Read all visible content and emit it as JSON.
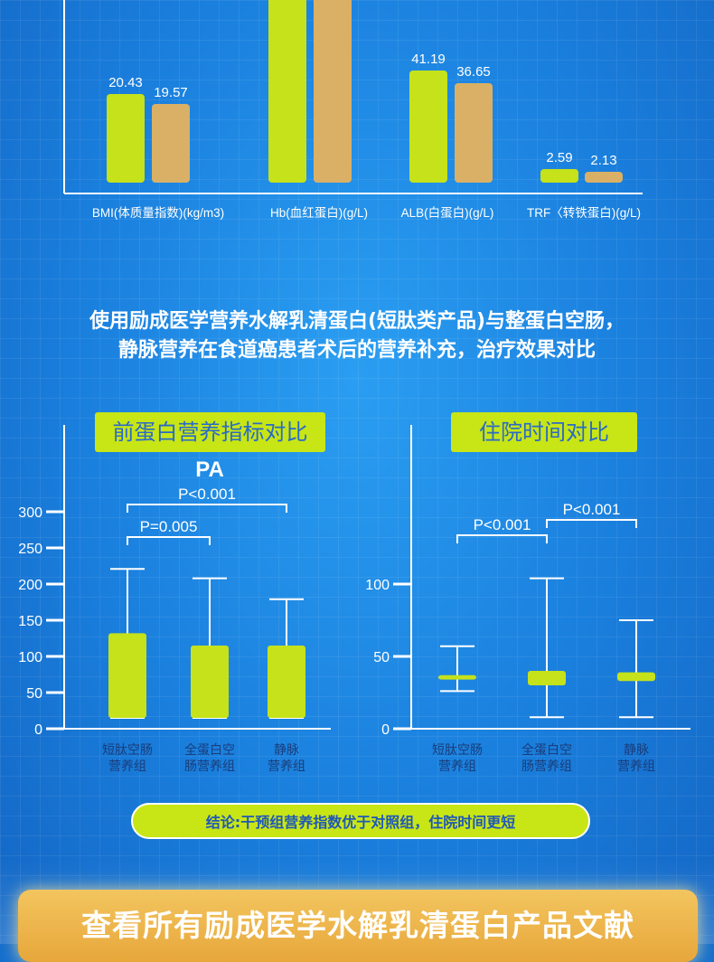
{
  "colors": {
    "lime": "#c5e21a",
    "tan": "#d9b066",
    "white": "#ffffff",
    "label_dark": "#1a3d7a"
  },
  "headline": {
    "line1": "使用励成医学营养水解乳清蛋白(短肽类产品)与整蛋白空肠，",
    "line2": "静脉营养在食道癌患者术后的营养补充，治疗效果对比"
  },
  "panels": {
    "left_title": "前蛋白营养指标对比",
    "right_title": "住院时间对比"
  },
  "conclusion": "结论:干预组营养指数优于对照组，住院时间更短",
  "footer_button": "查看所有励成医学水解乳清蛋白产品文献",
  "chart_data": [
    {
      "type": "bar",
      "categories": [
        "BMI(体质量指数)(kg/m3)",
        "Hb(血红蛋白)(g/L)",
        "ALB(白蛋白)(g/L)",
        "TRF〈转铁蛋白)(g/L)"
      ],
      "series": [
        {
          "values": [
            20.43,
            null,
            41.19,
            2.59
          ],
          "labels": [
            "20.43",
            "",
            "41.19",
            "2.59"
          ]
        },
        {
          "values": [
            19.57,
            null,
            36.65,
            2.13
          ],
          "labels": [
            "19.57",
            "",
            "36.65",
            "2.13"
          ]
        }
      ]
    },
    {
      "type": "box",
      "title": "PA",
      "ylim": [
        0,
        300
      ],
      "yticks": [
        "0",
        "50",
        "100",
        "150",
        "200",
        "250",
        "300"
      ],
      "categories": [
        [
          "短肽空肠",
          "营养组"
        ],
        [
          "全蛋白空",
          "肠营养组"
        ],
        [
          "静脉",
          "营养组"
        ]
      ],
      "boxes": [
        {
          "whisker_low": 15,
          "box_low": 15,
          "box_high": 132,
          "whisker_high": 221
        },
        {
          "whisker_low": 15,
          "box_low": 15,
          "box_high": 115,
          "whisker_high": 208
        },
        {
          "whisker_low": 15,
          "box_low": 15,
          "box_high": 115,
          "whisker_high": 179
        }
      ],
      "annotations": [
        {
          "label": "P<0.001",
          "from": 0,
          "to": 2
        },
        {
          "label": "P=0.005",
          "from": 0,
          "to": 1
        }
      ]
    },
    {
      "type": "box",
      "ylim": [
        0,
        150
      ],
      "yticks": [
        "0",
        "50",
        "100"
      ],
      "categories": [
        [
          "短肽空肠",
          "营养组"
        ],
        [
          "全蛋白空",
          "肠营养组"
        ],
        [
          "静脉",
          "营养组"
        ]
      ],
      "boxes": [
        {
          "whisker_low": 26,
          "box_low": 34,
          "box_high": 37,
          "whisker_high": 57
        },
        {
          "whisker_low": 8,
          "box_low": 30,
          "box_high": 40,
          "whisker_high": 104
        },
        {
          "whisker_low": 8,
          "box_low": 33,
          "box_high": 39,
          "whisker_high": 75
        }
      ],
      "annotations": [
        {
          "label": "P<0.001",
          "from": 0,
          "to": 1
        },
        {
          "label": "P<0.001",
          "from": 1,
          "to": 2
        }
      ]
    }
  ]
}
